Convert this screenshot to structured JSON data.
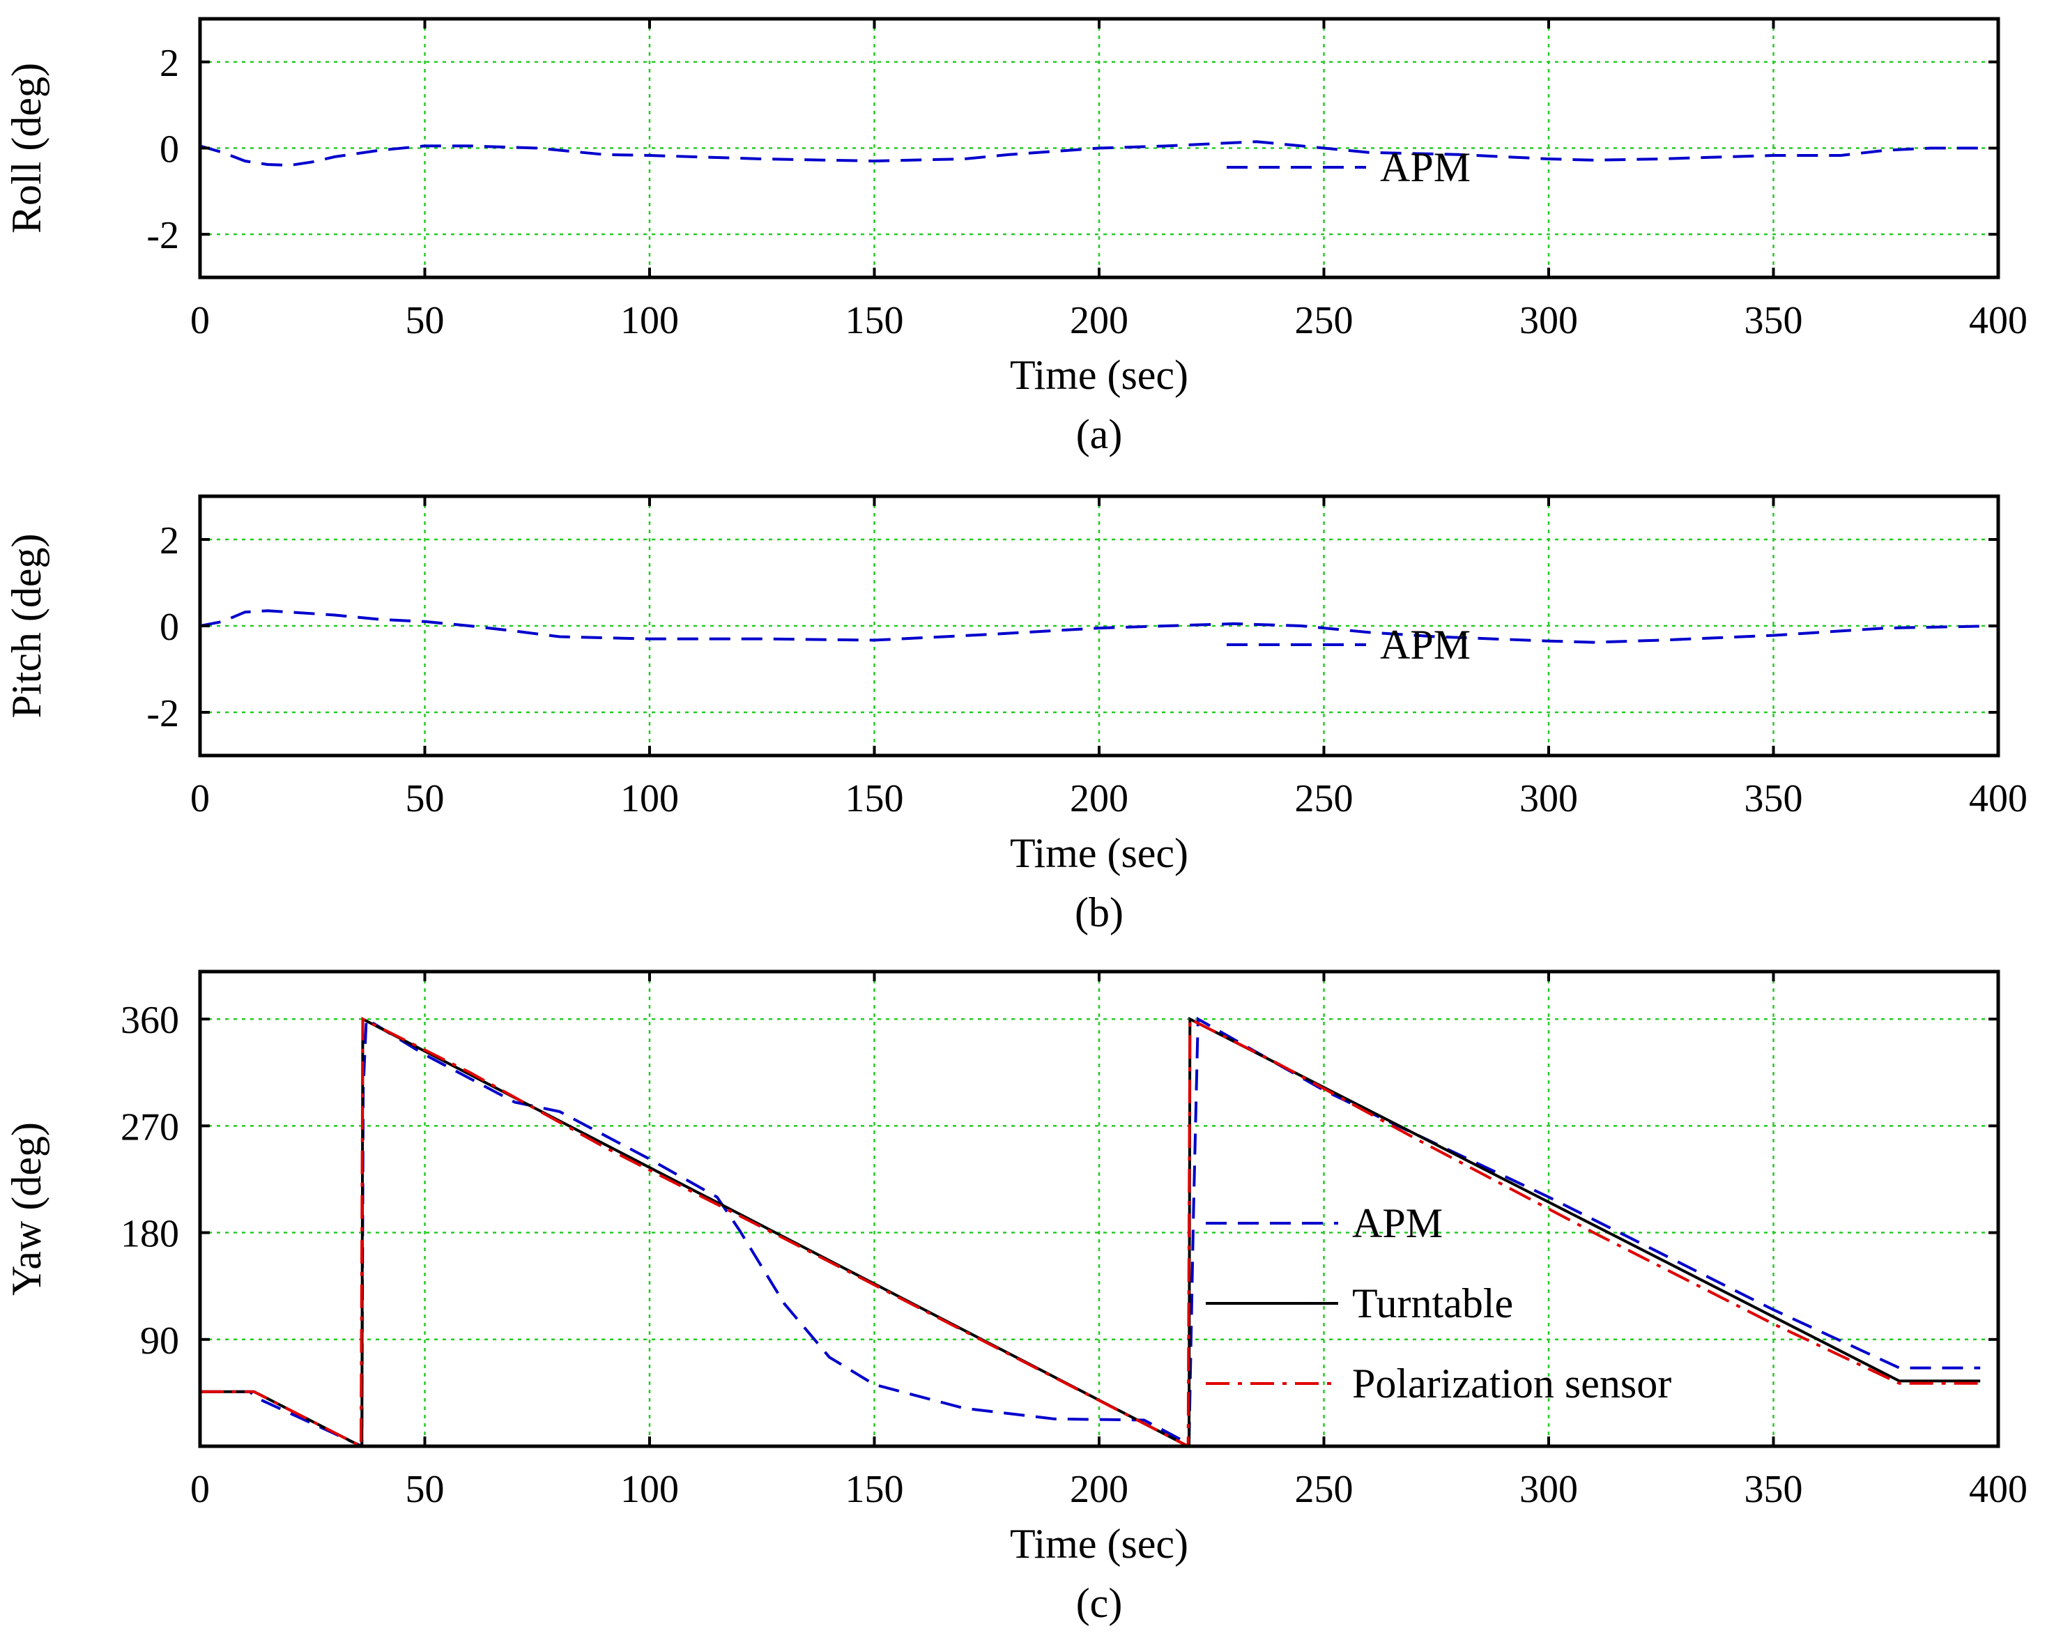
{
  "chart_data": [
    {
      "type": "line",
      "caption": "(a)",
      "xlabel": "Time (sec)",
      "ylabel": "Roll (deg)",
      "xlim": [
        0,
        400
      ],
      "ylim": [
        -3,
        3
      ],
      "xticks": [
        0,
        50,
        100,
        150,
        200,
        250,
        300,
        350,
        400
      ],
      "yticks": [
        -2,
        0,
        2
      ],
      "grid": true,
      "legend_position": "center-right",
      "series": [
        {
          "name": "APM",
          "color": "#0000cc",
          "style": "dashed",
          "x": [
            0,
            5,
            10,
            15,
            20,
            25,
            30,
            40,
            50,
            60,
            75,
            90,
            100,
            125,
            150,
            170,
            180,
            200,
            215,
            225,
            235,
            245,
            260,
            280,
            300,
            310,
            325,
            340,
            350,
            365,
            375,
            385,
            400
          ],
          "y": [
            0.05,
            -0.1,
            -0.3,
            -0.38,
            -0.4,
            -0.32,
            -0.2,
            -0.05,
            0.05,
            0.05,
            0.0,
            -0.15,
            -0.17,
            -0.25,
            -0.3,
            -0.25,
            -0.15,
            0.0,
            0.05,
            0.1,
            0.15,
            0.05,
            -0.1,
            -0.15,
            -0.25,
            -0.28,
            -0.25,
            -0.2,
            -0.17,
            -0.17,
            -0.05,
            0.0,
            0.0
          ]
        }
      ]
    },
    {
      "type": "line",
      "caption": "(b)",
      "xlabel": "Time (sec)",
      "ylabel": "Pitch (deg)",
      "xlim": [
        0,
        400
      ],
      "ylim": [
        -3,
        3
      ],
      "xticks": [
        0,
        50,
        100,
        150,
        200,
        250,
        300,
        350,
        400
      ],
      "yticks": [
        -2,
        0,
        2
      ],
      "grid": true,
      "legend_position": "center-right",
      "series": [
        {
          "name": "APM",
          "color": "#0000cc",
          "style": "dashed",
          "x": [
            0,
            5,
            10,
            15,
            20,
            30,
            40,
            50,
            60,
            70,
            80,
            100,
            125,
            150,
            175,
            200,
            215,
            230,
            245,
            260,
            275,
            300,
            310,
            325,
            350,
            375,
            400
          ],
          "y": [
            0.0,
            0.1,
            0.32,
            0.35,
            0.32,
            0.25,
            0.15,
            0.1,
            0.0,
            -0.12,
            -0.25,
            -0.3,
            -0.3,
            -0.33,
            -0.2,
            -0.05,
            0.0,
            0.05,
            0.0,
            -0.15,
            -0.25,
            -0.35,
            -0.38,
            -0.33,
            -0.22,
            -0.05,
            0.0
          ]
        }
      ]
    },
    {
      "type": "line",
      "caption": "(c)",
      "xlabel": "Time (sec)",
      "ylabel": "Yaw (deg)",
      "xlim": [
        0,
        400
      ],
      "ylim": [
        0,
        400
      ],
      "xticks": [
        0,
        50,
        100,
        150,
        200,
        250,
        300,
        350,
        400
      ],
      "yticks": [
        90,
        180,
        270,
        360
      ],
      "grid": true,
      "legend_position": "center-right",
      "series": [
        {
          "name": "APM",
          "color": "#0000cc",
          "style": "dashed",
          "x": [
            0,
            11,
            13,
            36,
            36.3,
            37,
            50,
            70,
            80,
            100,
            115,
            120,
            130,
            140,
            150,
            170,
            190,
            210,
            220,
            221,
            222,
            250,
            262,
            300,
            350,
            378,
            396
          ],
          "y": [
            46,
            46,
            40,
            0,
            300,
            360,
            330,
            290,
            282,
            242,
            210,
            182,
            120,
            75,
            52,
            32,
            23,
            22,
            2,
            200,
            360,
            300,
            278,
            210,
            115,
            66,
            66
          ]
        },
        {
          "name": "Turntable",
          "color": "#000000",
          "style": "solid",
          "x": [
            0,
            12,
            35.8,
            36,
            36.2,
            219.8,
            220,
            220.2,
            378,
            396
          ],
          "y": [
            46,
            46,
            0,
            0,
            360,
            0,
            0,
            360,
            55,
            55
          ]
        },
        {
          "name": "Polarization sensor",
          "color": "#e00000",
          "style": "dashdot",
          "x": [
            0,
            12,
            35.8,
            36.2,
            60,
            90,
            130,
            170,
            219.8,
            220.2,
            240,
            270,
            310,
            350,
            378,
            396
          ],
          "y": [
            46,
            46,
            0,
            360,
            315,
            252,
            175,
            97,
            0,
            360,
            322,
            260,
            180,
            103,
            53,
            53
          ]
        }
      ]
    }
  ]
}
